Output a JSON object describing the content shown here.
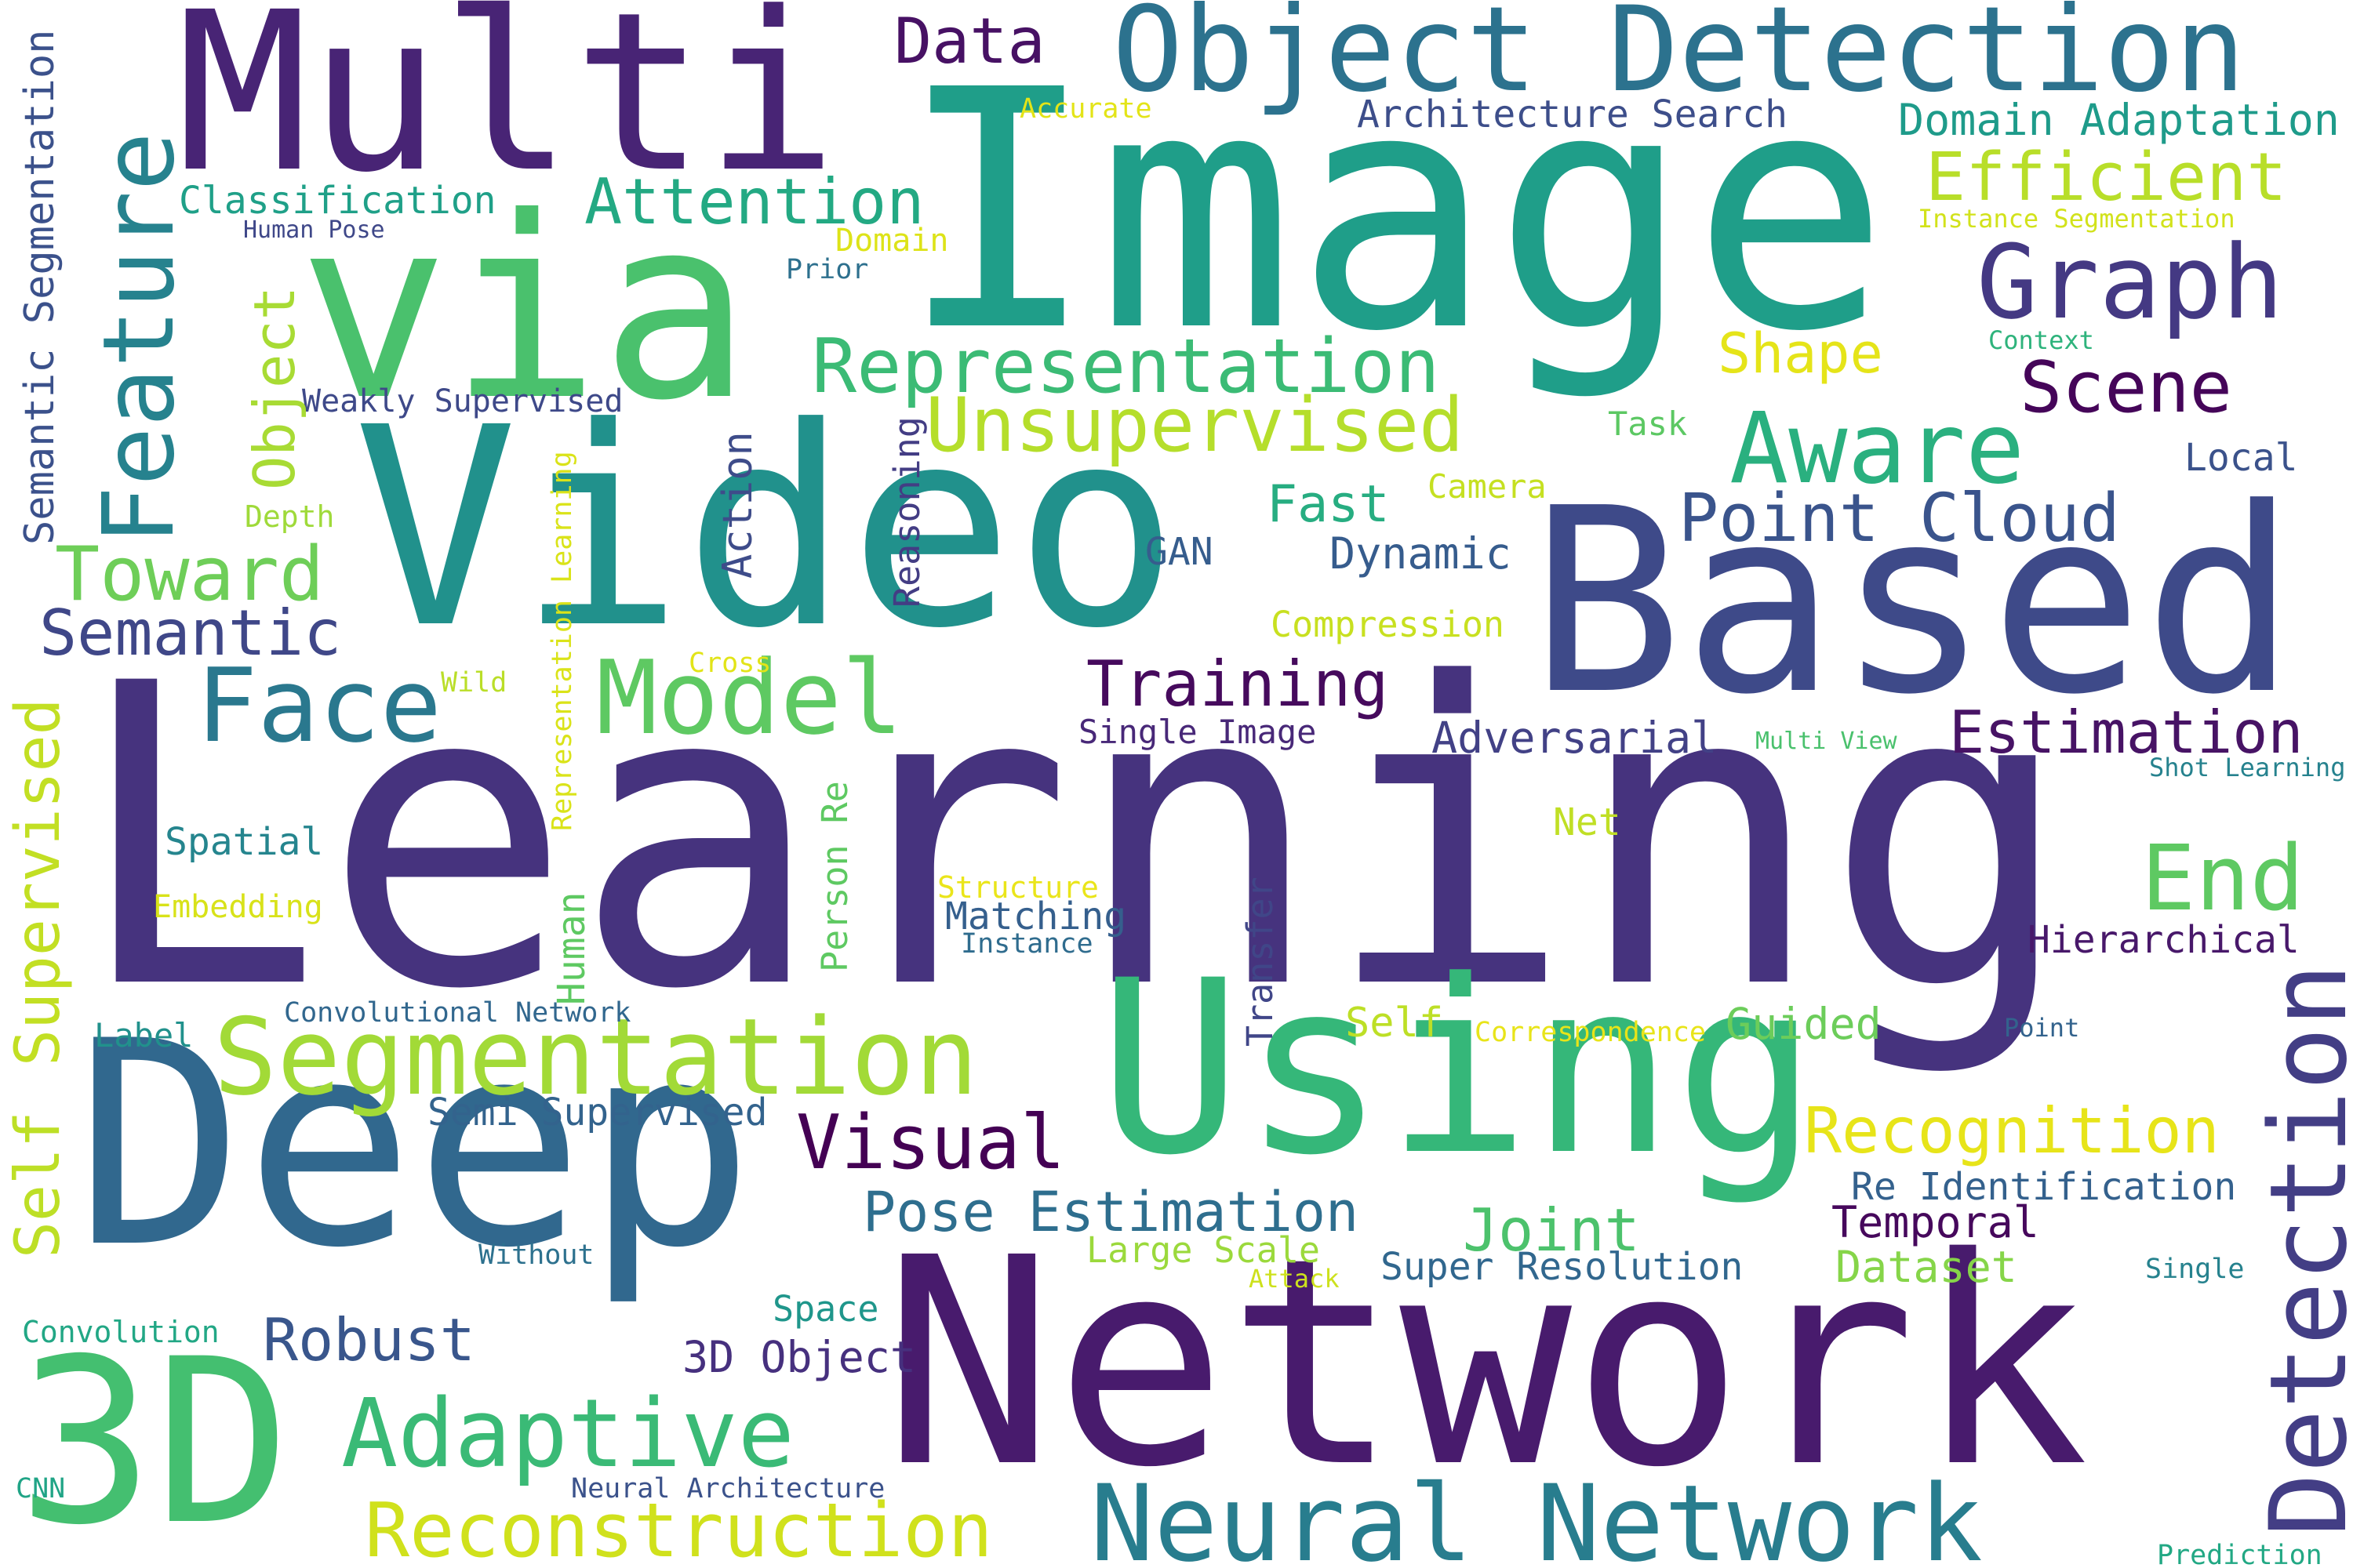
{
  "words": [
    {
      "text": "Learning",
      "color": "#46337e"
    },
    {
      "text": "Network",
      "color": "#481b6d"
    },
    {
      "text": "Image",
      "color": "#1f9e89"
    },
    {
      "text": "Deep",
      "color": "#31688e"
    },
    {
      "text": "Video",
      "color": "#21918c"
    },
    {
      "text": "Based",
      "color": "#3e4a89"
    },
    {
      "text": "Using",
      "color": "#35b779"
    },
    {
      "text": "via",
      "color": "#4ac16d"
    },
    {
      "text": "Multi",
      "color": "#482475"
    },
    {
      "text": "3D",
      "color": "#44bf70"
    },
    {
      "text": "Object Detection",
      "color": "#2c728e"
    },
    {
      "text": "Neural Network",
      "color": "#287d8e"
    },
    {
      "text": "Segmentation",
      "color": "#a2da37"
    },
    {
      "text": "Detection",
      "color": "#433e85"
    },
    {
      "text": "Feature",
      "color": "#26828e"
    },
    {
      "text": "Model",
      "color": "#5ec962"
    },
    {
      "text": "Graph",
      "color": "#443983"
    },
    {
      "text": "Representation",
      "color": "#3bbb75"
    },
    {
      "text": "Unsupervised",
      "color": "#b5de2b"
    },
    {
      "text": "Face",
      "color": "#2a788e"
    },
    {
      "text": "Aware",
      "color": "#2ab07f"
    },
    {
      "text": "Adaptive",
      "color": "#3aba76"
    },
    {
      "text": "Reconstruction",
      "color": "#d0e11c"
    },
    {
      "text": "Point Cloud",
      "color": "#3a548c"
    },
    {
      "text": "Recognition",
      "color": "#e7e419"
    },
    {
      "text": "End",
      "color": "#5ec962"
    },
    {
      "text": "Toward",
      "color": "#6ece58"
    },
    {
      "text": "Visual",
      "color": "#440154"
    },
    {
      "text": "Efficient",
      "color": "#b8de29"
    },
    {
      "text": "Scene",
      "color": "#450559"
    },
    {
      "text": "Attention",
      "color": "#23a983"
    },
    {
      "text": "Semantic",
      "color": "#3f4788"
    },
    {
      "text": "Training",
      "color": "#460a5d"
    },
    {
      "text": "Estimation",
      "color": "#471365"
    },
    {
      "text": "Supervised",
      "color": "#c2df23"
    },
    {
      "text": "Self",
      "color": "#bddf26"
    },
    {
      "text": "Pose Estimation",
      "color": "#2e6e8e"
    },
    {
      "text": "Joint",
      "color": "#4cc26c"
    },
    {
      "text": "Robust",
      "color": "#39568c"
    },
    {
      "text": "Data",
      "color": "#471164"
    },
    {
      "text": "Object",
      "color": "#a8db34"
    },
    {
      "text": "Semantic Segmentation",
      "color": "#3b518b"
    },
    {
      "text": "Shape",
      "color": "#e5e419"
    },
    {
      "text": "Fast",
      "color": "#27ad81"
    },
    {
      "text": "Domain Adaptation",
      "color": "#1e9b8a"
    },
    {
      "text": "Architecture Search",
      "color": "#3d4e8a"
    },
    {
      "text": "Classification",
      "color": "#1fa088"
    },
    {
      "text": "Adversarial",
      "color": "#424186"
    },
    {
      "text": "Dynamic",
      "color": "#365c8d"
    },
    {
      "text": "Re Identification",
      "color": "#34618d"
    },
    {
      "text": "Temporal",
      "color": "#46085c"
    },
    {
      "text": "Hierarchical",
      "color": "#48186a"
    },
    {
      "text": "Dataset",
      "color": "#86d549"
    },
    {
      "text": "Super Resolution",
      "color": "#31678e"
    },
    {
      "text": "3D Object",
      "color": "#46307e"
    },
    {
      "text": "Semi Supervised",
      "color": "#33638d"
    },
    {
      "text": "Guided",
      "color": "#6ccd5a"
    },
    {
      "text": "Matching",
      "color": "#355f8d"
    },
    {
      "text": "Spatial",
      "color": "#25858e"
    },
    {
      "text": "Action",
      "color": "#3e4c8a"
    },
    {
      "text": "Reasoning",
      "color": "#433d84"
    },
    {
      "text": "Transfer",
      "color": "#404688"
    },
    {
      "text": "Human",
      "color": "#5ec962"
    },
    {
      "text": "Person Re",
      "color": "#5ec962"
    },
    {
      "text": "Space",
      "color": "#1f968b"
    },
    {
      "text": "Large Scale",
      "color": "#9bd93c"
    },
    {
      "text": "Single Image",
      "color": "#482878"
    },
    {
      "text": "GAN",
      "color": "#365d8d"
    },
    {
      "text": "Net",
      "color": "#c0df25"
    },
    {
      "text": "Local",
      "color": "#3b528b"
    },
    {
      "text": "Compression",
      "color": "#c8e020"
    },
    {
      "text": "Camera",
      "color": "#c5e021"
    },
    {
      "text": "Task",
      "color": "#5cc863"
    },
    {
      "text": "Label",
      "color": "#21918c"
    },
    {
      "text": "Embedding",
      "color": "#d8e219"
    },
    {
      "text": "Structure",
      "color": "#eae51a"
    },
    {
      "text": "Instance",
      "color": "#2f6c8e"
    },
    {
      "text": "Convolutional Network",
      "color": "#31678e"
    },
    {
      "text": "Weakly Supervised",
      "color": "#3e4989"
    },
    {
      "text": "Depth",
      "color": "#9fda3a"
    },
    {
      "text": "Representation Learning",
      "color": "#dae319"
    },
    {
      "text": "Cross",
      "color": "#e2e418"
    },
    {
      "text": "Wild",
      "color": "#bade28"
    },
    {
      "text": "Correspondence",
      "color": "#e8e419"
    },
    {
      "text": "Neural Architecture",
      "color": "#3b528b"
    },
    {
      "text": "Convolution",
      "color": "#22a785"
    },
    {
      "text": "CNN",
      "color": "#20a486"
    },
    {
      "text": "Without",
      "color": "#2d718e"
    },
    {
      "text": "Attack",
      "color": "#cde11d"
    },
    {
      "text": "Single",
      "color": "#26828e"
    },
    {
      "text": "Point",
      "color": "#33638d"
    },
    {
      "text": "Shot Learning",
      "color": "#26828e"
    },
    {
      "text": "Multi View",
      "color": "#4ac16d"
    },
    {
      "text": "Prediction",
      "color": "#22a884"
    },
    {
      "text": "Human Pose",
      "color": "#3f4889"
    },
    {
      "text": "Domain",
      "color": "#dde318"
    },
    {
      "text": "Prior",
      "color": "#2d708e"
    },
    {
      "text": "Accurate",
      "color": "#e3e418"
    },
    {
      "text": "Instance Segmentation",
      "color": "#d2e21b"
    },
    {
      "text": "Context",
      "color": "#2eb37c"
    }
  ]
}
